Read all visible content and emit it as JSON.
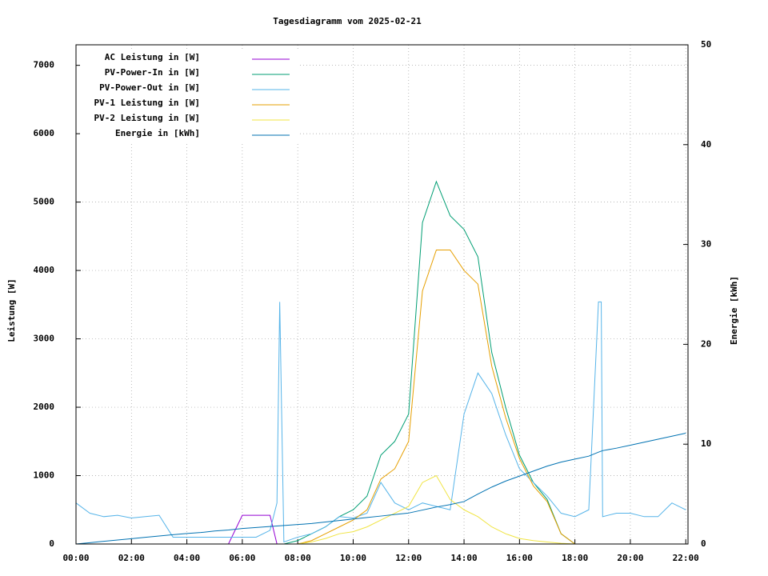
{
  "chart_data": {
    "type": "line",
    "title": "Tagesdiagramm vom 2025-02-21",
    "y_label": "Leistung [W]",
    "y2_label": "Energie [kWh]",
    "grid": true,
    "legend": "top-left",
    "x": [
      0,
      0.5,
      1,
      1.5,
      2,
      2.5,
      3,
      3.5,
      4,
      4.5,
      5,
      5.5,
      6,
      6.5,
      7,
      7.25,
      7.35,
      7.5,
      8,
      8.5,
      9,
      9.5,
      10,
      10.5,
      11,
      11.5,
      12,
      12.5,
      13,
      13.5,
      14,
      14.5,
      15,
      15.5,
      16,
      16.5,
      17,
      17.5,
      18,
      18.5,
      18.85,
      18.95,
      19,
      19.5,
      20,
      20.5,
      21,
      21.5,
      22
    ],
    "xlim": [
      0,
      22.08
    ],
    "xticks": [
      {
        "value": 0,
        "label": "00:00"
      },
      {
        "value": 2,
        "label": "02:00"
      },
      {
        "value": 4,
        "label": "04:00"
      },
      {
        "value": 6,
        "label": "06:00"
      },
      {
        "value": 8,
        "label": "08:00"
      },
      {
        "value": 10,
        "label": "10:00"
      },
      {
        "value": 12,
        "label": "12:00"
      },
      {
        "value": 14,
        "label": "14:00"
      },
      {
        "value": 16,
        "label": "16:00"
      },
      {
        "value": 18,
        "label": "18:00"
      },
      {
        "value": 20,
        "label": "20:00"
      },
      {
        "value": 22,
        "label": "22:00"
      }
    ],
    "ylim": [
      0,
      7300
    ],
    "yticks": [
      0,
      1000,
      2000,
      3000,
      4000,
      5000,
      6000,
      7000
    ],
    "y2lim": [
      0,
      50
    ],
    "y2ticks": [
      0,
      10,
      20,
      30,
      40,
      50
    ],
    "series": [
      {
        "name": "AC Leistung in [W]",
        "color": "#9400d3",
        "values": [
          0,
          0,
          0,
          0,
          0,
          0,
          0,
          0,
          0,
          0,
          0,
          0,
          420,
          420,
          420,
          0,
          0,
          0,
          0,
          0,
          0,
          0,
          0,
          0,
          0,
          0,
          0,
          0,
          0,
          0,
          0,
          0,
          0,
          0,
          0,
          0,
          0,
          0,
          0,
          0,
          0,
          0,
          0,
          0,
          0,
          0,
          0,
          0,
          0
        ]
      },
      {
        "name": "PV-Power-In in [W]",
        "color": "#009e73",
        "values": [
          0,
          0,
          0,
          0,
          0,
          0,
          0,
          0,
          0,
          0,
          0,
          0,
          0,
          0,
          0,
          0,
          0,
          0,
          50,
          150,
          250,
          400,
          500,
          700,
          1300,
          1500,
          1900,
          4700,
          5300,
          4800,
          4600,
          4200,
          2800,
          2000,
          1300,
          900,
          650,
          150,
          0,
          0,
          0,
          0,
          0,
          0,
          0,
          0,
          0,
          0,
          0
        ]
      },
      {
        "name": "PV-Power-Out in [W]",
        "color": "#56b4e9",
        "values": [
          600,
          450,
          400,
          420,
          380,
          400,
          420,
          100,
          100,
          100,
          100,
          100,
          100,
          100,
          200,
          600,
          3540,
          30,
          100,
          150,
          250,
          400,
          380,
          450,
          900,
          600,
          500,
          600,
          550,
          500,
          1900,
          2500,
          2200,
          1600,
          1100,
          900,
          700,
          450,
          400,
          500,
          3540,
          3540,
          400,
          450,
          450,
          400,
          400,
          600,
          500
        ]
      },
      {
        "name": "PV-1 Leistung in [W]",
        "color": "#e69f00",
        "values": [
          0,
          0,
          0,
          0,
          0,
          0,
          0,
          0,
          0,
          0,
          0,
          0,
          0,
          0,
          0,
          0,
          0,
          0,
          0,
          50,
          150,
          250,
          350,
          500,
          950,
          1100,
          1500,
          3700,
          4300,
          4300,
          4000,
          3800,
          2600,
          1850,
          1250,
          850,
          620,
          150,
          0,
          0,
          0,
          0,
          0,
          0,
          0,
          0,
          0,
          0,
          0
        ]
      },
      {
        "name": "PV-2 Leistung in [W]",
        "color": "#f0e442",
        "values": [
          0,
          0,
          0,
          0,
          0,
          0,
          0,
          0,
          0,
          0,
          0,
          0,
          0,
          0,
          0,
          0,
          0,
          0,
          0,
          30,
          80,
          150,
          180,
          250,
          350,
          450,
          550,
          900,
          1000,
          650,
          500,
          400,
          250,
          150,
          80,
          50,
          30,
          10,
          0,
          0,
          0,
          0,
          0,
          0,
          0,
          0,
          0,
          0,
          0
        ]
      },
      {
        "name": "Energie in [kWh]",
        "color": "#0072b2",
        "axis": "y2",
        "values": [
          0,
          0.13,
          0.27,
          0.4,
          0.53,
          0.67,
          0.8,
          0.93,
          1.05,
          1.15,
          1.3,
          1.4,
          1.55,
          1.65,
          1.75,
          1.8,
          1.82,
          1.85,
          1.95,
          2.05,
          2.2,
          2.35,
          2.5,
          2.65,
          2.8,
          2.95,
          3.1,
          3.4,
          3.7,
          3.95,
          4.25,
          5.0,
          5.7,
          6.3,
          6.8,
          7.3,
          7.8,
          8.2,
          8.5,
          8.8,
          9.2,
          9.3,
          9.35,
          9.6,
          9.9,
          10.2,
          10.5,
          10.8,
          11.1
        ]
      }
    ]
  }
}
